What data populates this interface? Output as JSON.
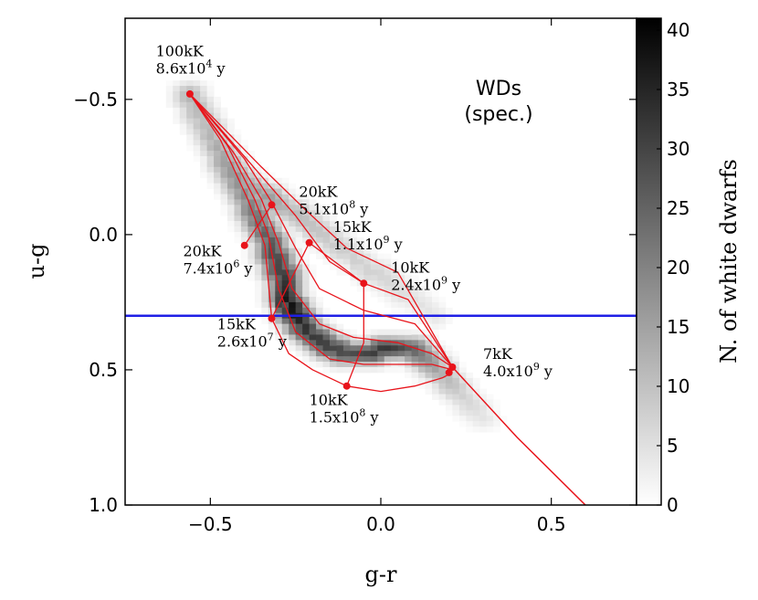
{
  "chart_data": {
    "type": "heatmap",
    "title": "",
    "xlabel": "g-r",
    "ylabel": "u-g",
    "xlim": [
      -0.75,
      0.75
    ],
    "ylim": [
      -0.8,
      1.0
    ],
    "y_inverted": true,
    "xticks": [
      -0.5,
      0.0,
      0.5
    ],
    "xtick_labels": [
      "−0.5",
      "0.0",
      "0.5"
    ],
    "yticks": [
      -0.5,
      0.0,
      0.5,
      1.0
    ],
    "ytick_labels": [
      "−0.5",
      "0.0",
      "0.5",
      "1.0"
    ],
    "inset_text": [
      "WDs",
      "(spec.)"
    ],
    "colorbar": {
      "label": "N. of white dwarfs",
      "min": 0,
      "max": 41,
      "ticks": [
        0,
        5,
        10,
        15,
        20,
        25,
        30,
        35,
        40
      ],
      "tick_labels": [
        "0",
        "5",
        "10",
        "15",
        "20",
        "25",
        "30",
        "35",
        "40"
      ],
      "colormap": "grayscale"
    },
    "hline": {
      "y": 0.3,
      "color": "#1f1fe6"
    },
    "density_ridge": [
      {
        "x": -0.56,
        "y": -0.52,
        "count": 12
      },
      {
        "x": -0.52,
        "y": -0.42,
        "count": 10
      },
      {
        "x": -0.48,
        "y": -0.33,
        "count": 13
      },
      {
        "x": -0.44,
        "y": -0.24,
        "count": 16
      },
      {
        "x": -0.4,
        "y": -0.15,
        "count": 18
      },
      {
        "x": -0.36,
        "y": -0.06,
        "count": 22
      },
      {
        "x": -0.32,
        "y": 0.04,
        "count": 27
      },
      {
        "x": -0.29,
        "y": 0.14,
        "count": 30
      },
      {
        "x": -0.27,
        "y": 0.26,
        "count": 38
      },
      {
        "x": -0.22,
        "y": 0.36,
        "count": 32
      },
      {
        "x": -0.16,
        "y": 0.41,
        "count": 30
      },
      {
        "x": -0.1,
        "y": 0.44,
        "count": 28
      },
      {
        "x": -0.04,
        "y": 0.44,
        "count": 30
      },
      {
        "x": 0.02,
        "y": 0.42,
        "count": 32
      },
      {
        "x": 0.08,
        "y": 0.42,
        "count": 26
      },
      {
        "x": 0.13,
        "y": 0.46,
        "count": 18
      },
      {
        "x": 0.18,
        "y": 0.52,
        "count": 12
      },
      {
        "x": 0.24,
        "y": 0.6,
        "count": 7
      },
      {
        "x": 0.3,
        "y": 0.68,
        "count": 4
      }
    ],
    "density_upper_band": [
      {
        "x": -0.4,
        "y": -0.2,
        "count": 14
      },
      {
        "x": -0.34,
        "y": -0.14,
        "count": 16
      },
      {
        "x": -0.28,
        "y": -0.1,
        "count": 12
      },
      {
        "x": -0.22,
        "y": -0.05,
        "count": 10
      },
      {
        "x": -0.12,
        "y": 0.05,
        "count": 8
      },
      {
        "x": -0.02,
        "y": 0.14,
        "count": 7
      },
      {
        "x": 0.08,
        "y": 0.22,
        "count": 5
      },
      {
        "x": 0.16,
        "y": 0.3,
        "count": 4
      }
    ],
    "tracks": {
      "comment": "cooling sequences for different WD masses (no legend)",
      "lines": [
        [
          [
            -0.56,
            -0.52
          ],
          [
            -0.47,
            -0.35
          ],
          [
            -0.39,
            -0.13
          ],
          [
            -0.34,
            0.04
          ],
          [
            -0.32,
            0.31
          ],
          [
            -0.27,
            0.44
          ],
          [
            -0.2,
            0.5
          ],
          [
            -0.1,
            0.56
          ],
          [
            0.0,
            0.58
          ],
          [
            0.1,
            0.56
          ],
          [
            0.18,
            0.53
          ],
          [
            0.21,
            0.51
          ]
        ],
        [
          [
            -0.56,
            -0.52
          ],
          [
            -0.45,
            -0.33
          ],
          [
            -0.37,
            -0.13
          ],
          [
            -0.33,
            0.0
          ],
          [
            -0.3,
            0.2
          ],
          [
            -0.25,
            0.36
          ],
          [
            -0.15,
            0.46
          ],
          [
            -0.05,
            0.48
          ],
          [
            0.05,
            0.48
          ],
          [
            0.15,
            0.48
          ],
          [
            0.21,
            0.5
          ]
        ],
        [
          [
            -0.56,
            -0.52
          ],
          [
            -0.43,
            -0.3
          ],
          [
            -0.35,
            -0.13
          ],
          [
            -0.3,
            0.03
          ],
          [
            -0.26,
            0.2
          ],
          [
            -0.18,
            0.33
          ],
          [
            -0.08,
            0.38
          ],
          [
            0.05,
            0.4
          ],
          [
            0.15,
            0.44
          ],
          [
            0.21,
            0.49
          ]
        ],
        [
          [
            -0.56,
            -0.52
          ],
          [
            -0.4,
            -0.28
          ],
          [
            -0.32,
            -0.12
          ],
          [
            -0.25,
            0.05
          ],
          [
            -0.18,
            0.2
          ],
          [
            -0.05,
            0.28
          ],
          [
            0.1,
            0.33
          ],
          [
            0.21,
            0.49
          ]
        ],
        [
          [
            -0.56,
            -0.52
          ],
          [
            -0.38,
            -0.26
          ],
          [
            -0.25,
            -0.07
          ],
          [
            -0.15,
            0.1
          ],
          [
            -0.05,
            0.18
          ],
          [
            0.08,
            0.24
          ],
          [
            0.21,
            0.49
          ]
        ],
        [
          [
            -0.56,
            -0.52
          ],
          [
            -0.35,
            -0.25
          ],
          [
            -0.22,
            -0.09
          ],
          [
            -0.1,
            0.05
          ],
          [
            0.05,
            0.14
          ],
          [
            0.21,
            0.49
          ]
        ]
      ],
      "extension": [
        [
          0.21,
          0.49
        ],
        [
          0.4,
          0.75
        ],
        [
          0.6,
          1.0
        ]
      ],
      "isochrones": [
        [
          [
            -0.4,
            0.04
          ],
          [
            -0.32,
            -0.11
          ]
        ],
        [
          [
            -0.32,
            0.31
          ],
          [
            -0.21,
            0.03
          ],
          [
            -0.05,
            0.18
          ]
        ],
        [
          [
            -0.1,
            0.56
          ],
          [
            -0.05,
            0.4
          ],
          [
            -0.05,
            0.18
          ]
        ],
        [
          [
            0.2,
            0.51
          ],
          [
            0.21,
            0.49
          ]
        ]
      ],
      "color": "#e8141b"
    },
    "markers": [
      {
        "x": -0.56,
        "y": -0.52
      },
      {
        "x": -0.32,
        "y": -0.11
      },
      {
        "x": -0.4,
        "y": 0.04
      },
      {
        "x": -0.21,
        "y": 0.03
      },
      {
        "x": -0.05,
        "y": 0.18
      },
      {
        "x": -0.32,
        "y": 0.31
      },
      {
        "x": -0.1,
        "y": 0.56
      },
      {
        "x": 0.21,
        "y": 0.49
      },
      {
        "x": 0.2,
        "y": 0.51
      }
    ],
    "annotations": [
      {
        "line1": "100kK",
        "line2": "8.6x10",
        "exp": "4",
        "suffix": " y",
        "anchor": "start",
        "x": -0.66,
        "y": -0.66
      },
      {
        "line1": "20kK",
        "line2": "5.1x10",
        "exp": "8",
        "suffix": " y",
        "anchor": "start",
        "x": -0.24,
        "y": -0.14
      },
      {
        "line1": "15kK",
        "line2": "1.1x10",
        "exp": "9",
        "suffix": " y",
        "anchor": "start",
        "x": -0.14,
        "y": -0.01
      },
      {
        "line1": "20kK",
        "line2": "7.4x10",
        "exp": "6",
        "suffix": " y",
        "anchor": "start",
        "x": -0.58,
        "y": 0.08
      },
      {
        "line1": "10kK",
        "line2": "2.4x10",
        "exp": "9",
        "suffix": " y",
        "anchor": "start",
        "x": 0.03,
        "y": 0.14
      },
      {
        "line1": "15kK",
        "line2": "2.6x10",
        "exp": "7",
        "suffix": " y",
        "anchor": "start",
        "x": -0.48,
        "y": 0.35
      },
      {
        "line1": "7kK",
        "line2": "4.0x10",
        "exp": "9",
        "suffix": " y",
        "anchor": "start",
        "x": 0.3,
        "y": 0.46
      },
      {
        "line1": "10kK",
        "line2": "1.5x10",
        "exp": "8",
        "suffix": " y",
        "anchor": "start",
        "x": -0.21,
        "y": 0.63
      }
    ]
  }
}
